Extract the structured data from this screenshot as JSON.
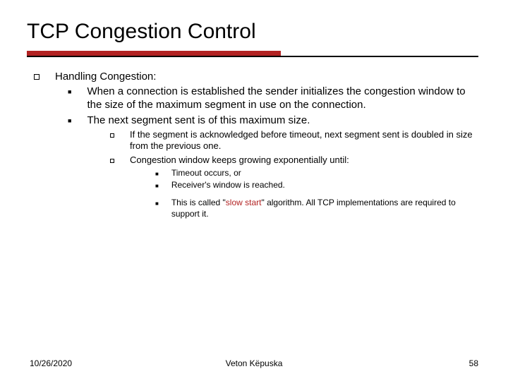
{
  "title": "TCP Congestion Control",
  "rule": {
    "red_color": "#b22222",
    "line_color": "#000000"
  },
  "l1": {
    "heading": "Handling Congestion:"
  },
  "l2": {
    "item1": "When a connection is established the sender initializes the congestion window to the size of the maximum segment  in use on the connection.",
    "item2": "The next segment sent is of this maximum size."
  },
  "l3": {
    "item1": "If the segment is acknowledged before timeout, next segment sent is doubled in size from the previous one.",
    "item2": "Congestion window keeps growing exponentially until:"
  },
  "l4": {
    "item1": "Timeout occurs, or",
    "item2": "Receiver's window is reached.",
    "item3a": "This is called \"",
    "item3b": "slow start",
    "item3c": "\" algorithm. All TCP implementations are required to support it."
  },
  "footer": {
    "date": "10/26/2020",
    "author": "Veton Këpuska",
    "page": "58"
  }
}
